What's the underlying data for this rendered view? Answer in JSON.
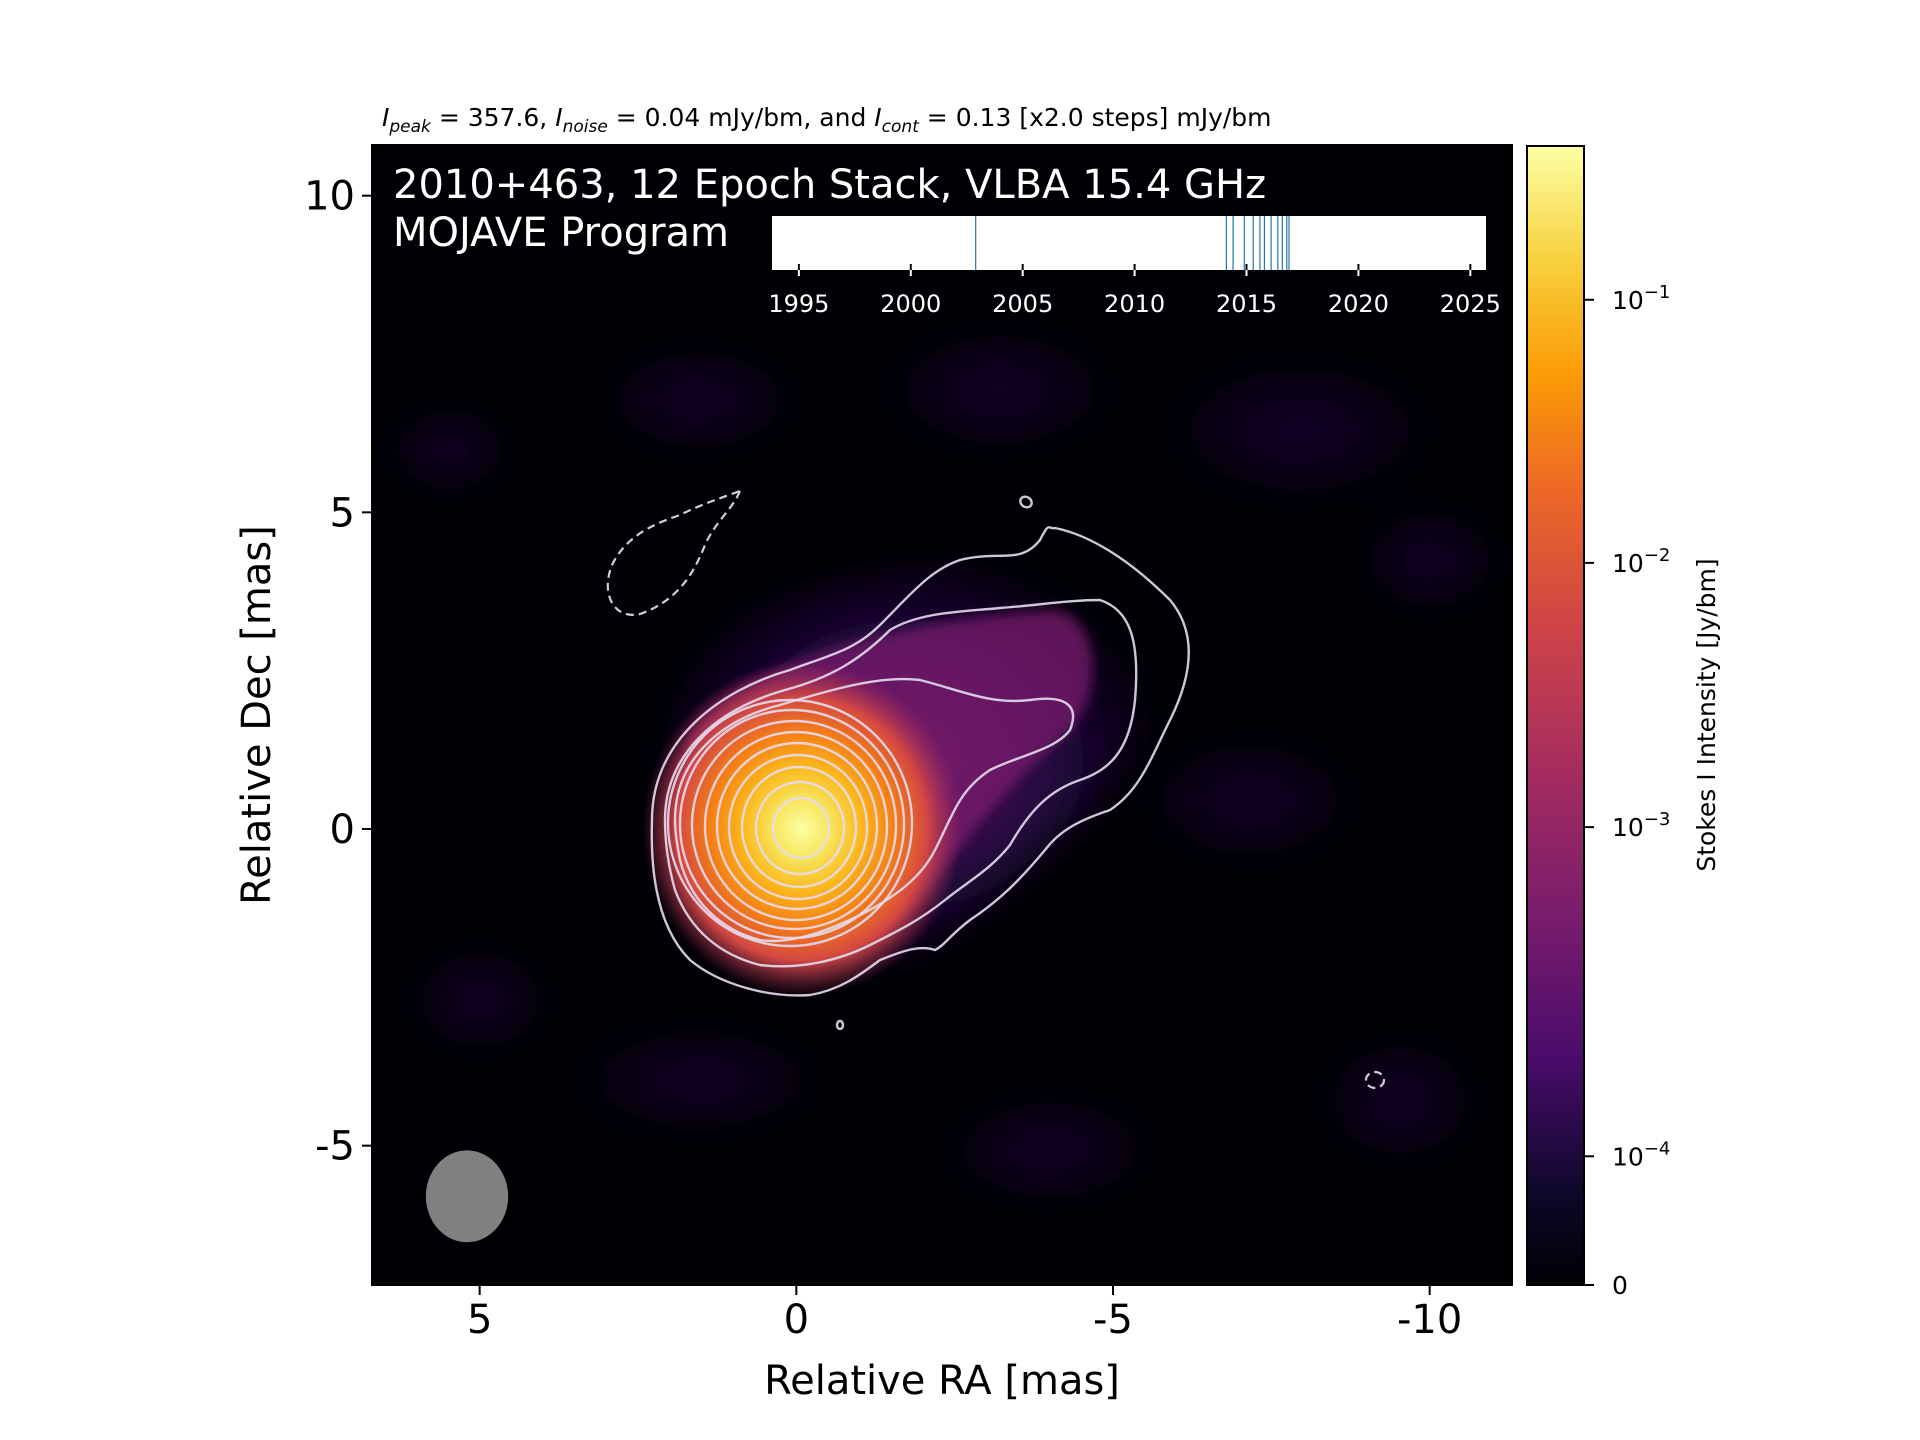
{
  "chart_data": {
    "type": "heatmap",
    "title": {
      "i_sym": "I",
      "peak_sub": "peak",
      "peak_text": " = 357.6, ",
      "noise_sub": "noise",
      "noise_text": " = 0.04 mJy/bm, and ",
      "cont_sub": "cont",
      "cont_text": " = 0.13 [x2.0 steps] mJy/bm"
    },
    "overlay_line1": "2010+463, 12 Epoch Stack, VLBA 15.4 GHz",
    "overlay_line2": "MOJAVE Program",
    "xlabel": "Relative RA [mas]",
    "ylabel": "Relative Dec [mas]",
    "xlim": [
      6.7,
      -11.3
    ],
    "ylim": [
      -7.2,
      10.8
    ],
    "x_ticks": [
      5,
      0,
      -5,
      -10
    ],
    "x_tick_labels": [
      "5",
      "0",
      "-5",
      "-10"
    ],
    "y_ticks": [
      10,
      5,
      0,
      -5
    ],
    "y_tick_labels": [
      "10",
      "5",
      "0",
      "-5"
    ],
    "peak_position": [
      0.1,
      0.1
    ],
    "contour_levels_count": 12,
    "beam": {
      "x": 5.2,
      "y": -5.8,
      "major": 1.45,
      "minor": 1.3,
      "color": "#808080"
    },
    "colorbar": {
      "label": "Stokes I Intensity [Jy/bm]",
      "scale": "log",
      "ticks": [
        {
          "exp": "−1",
          "frac": 0.865
        },
        {
          "exp": "−2",
          "frac": 0.634
        },
        {
          "exp": "−3",
          "frac": 0.402
        },
        {
          "exp": "−4",
          "frac": 0.113
        }
      ],
      "zero_label": "0",
      "base_label": "10",
      "colormap": "inferno",
      "colors": [
        "#000004",
        "#1b0c41",
        "#4a0c6b",
        "#781c6d",
        "#a52c60",
        "#cf4446",
        "#ed6925",
        "#fb9b06",
        "#f7d13d",
        "#fcffa4"
      ]
    },
    "epochs_inset": {
      "x_ticks": [
        1995,
        2000,
        2005,
        2010,
        2015,
        2020,
        2025
      ],
      "x_tick_labels": [
        "1995",
        "2000",
        "2005",
        "2010",
        "2015",
        "2020",
        "2025"
      ],
      "xlim": [
        1993.8,
        2025.7
      ],
      "epochs": [
        2002.9,
        2014.1,
        2014.4,
        2014.9,
        2015.3,
        2015.6,
        2015.8,
        2016.1,
        2016.4,
        2016.6,
        2016.8,
        2016.9
      ],
      "line_color": "#1f77b4"
    }
  }
}
